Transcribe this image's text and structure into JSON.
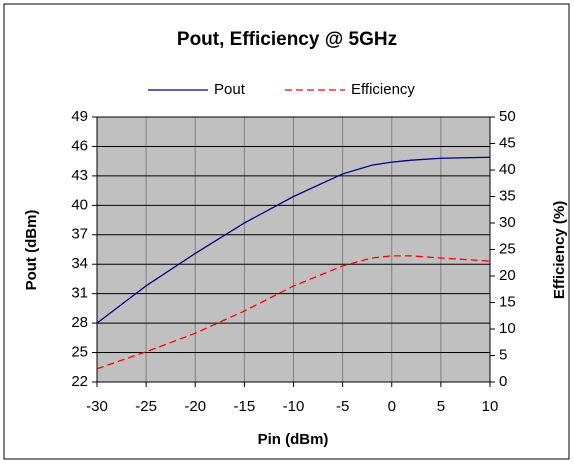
{
  "chart_data": {
    "type": "line",
    "title": "Pout, Efficiency @ 5GHz",
    "x_label": "Pin (dBm)",
    "y_label": "Pout  (dBm)",
    "y2_label": "Efficiency (%)",
    "x": [
      -30,
      -25,
      -20,
      -15,
      -10,
      -5,
      -2,
      0,
      2,
      5,
      10
    ],
    "series": [
      {
        "name": "Pout",
        "color": "#000080",
        "dash": false,
        "values": [
          28,
          31.8,
          35.1,
          38.2,
          40.9,
          43.2,
          44.1,
          44.4,
          44.6,
          44.8,
          44.9
        ]
      },
      {
        "name": "Efficiency",
        "color": "#ff0000",
        "dash": true,
        "axis": "y2",
        "values": [
          2.5,
          5.7,
          9.2,
          13.4,
          18.1,
          21.9,
          23.4,
          23.8,
          23.8,
          23.4,
          22.8
        ]
      }
    ],
    "xlim": [
      -30,
      10
    ],
    "xticks": [
      -30,
      -25,
      -20,
      -15,
      -10,
      -5,
      0,
      5,
      10
    ],
    "ylim": [
      22,
      49
    ],
    "yticks": [
      22,
      25,
      28,
      31,
      34,
      37,
      40,
      43,
      46,
      49
    ],
    "y2lim": [
      0,
      50
    ],
    "y2ticks": [
      0,
      5,
      10,
      15,
      20,
      25,
      30,
      35,
      40,
      45,
      50
    ],
    "grid": true,
    "legend": "top"
  }
}
